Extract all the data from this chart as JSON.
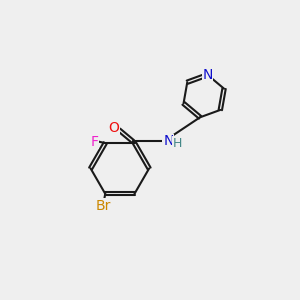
{
  "background_color": "#efefef",
  "bond_color": "#1a1a1a",
  "bond_lw": 1.5,
  "atom_colors": {
    "N": "#1010cc",
    "O": "#ee1111",
    "F": "#ee22cc",
    "Br": "#cc8800",
    "H": "#448888",
    "C": "#1a1a1a"
  },
  "font_size": 10,
  "font_size_small": 9
}
